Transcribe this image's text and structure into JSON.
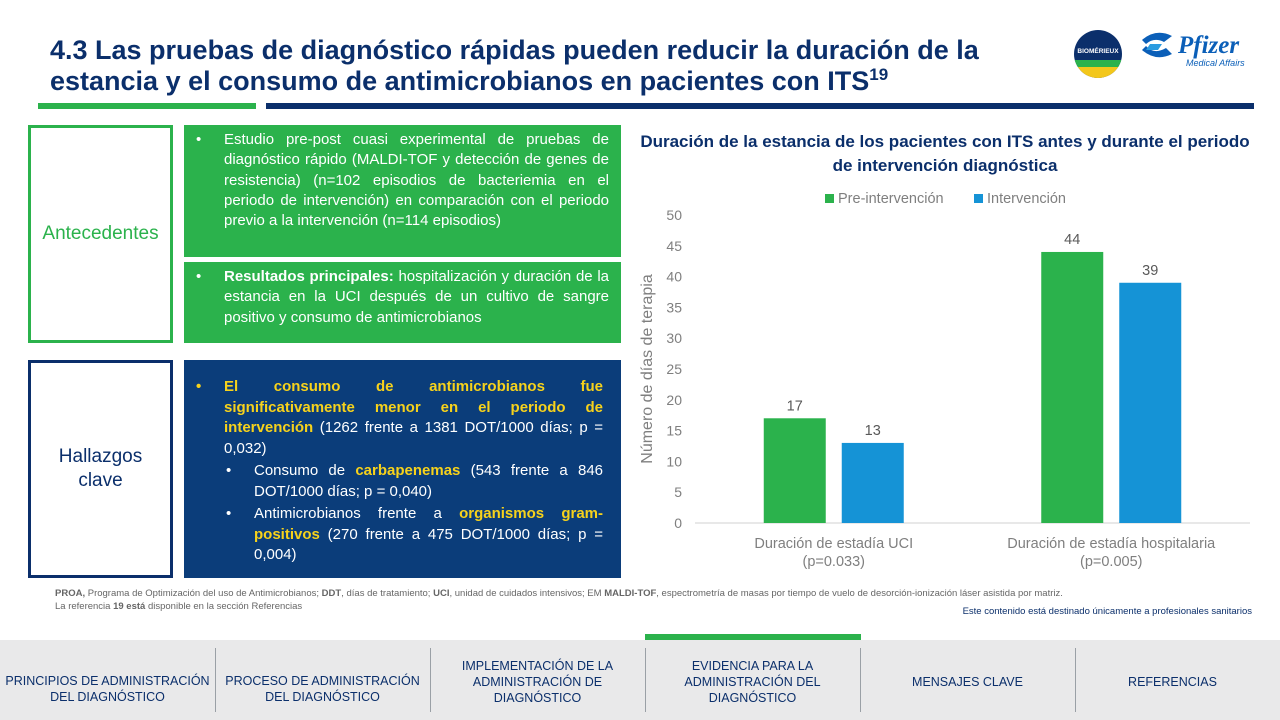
{
  "header": {
    "title": "4.3 Las pruebas de diagnóstico rápidas pueden reducir la duración de la estancia y el consumo de antimicrobianos en pacientes con ITS",
    "title_ref": "19",
    "logos": {
      "biomerieux_text": "BIOMÉRIEUX",
      "pfizer_text": "Pfizer",
      "pfizer_sub": "Medical Affairs"
    }
  },
  "sections": {
    "antecedentes": {
      "label": "Antecedentes",
      "bullet1": "Estudio pre-post cuasi experimental de pruebas de diagnóstico rápido (MALDI-TOF y detección de genes de resistencia) (n=102 episodios de bacteriemia en el periodo de intervención) en comparación con el periodo previo a la intervención (n=114 episodios)",
      "bullet2_bold": "Resultados principales:",
      "bullet2_text": " hospitalización y duración de la estancia en la UCI después de un cultivo de sangre positivo y consumo de antimicrobianos"
    },
    "hallazgos": {
      "label": "Hallazgos clave",
      "main_highlight": "El consumo de antimicrobianos fue significativamente menor en el periodo de intervención",
      "main_text": " (1262 frente a 1381 DOT/1000 días; p = 0,032)",
      "sub1_pre": "Consumo de ",
      "sub1_highlight": "carbapenemas",
      "sub1_post": " (543 frente a 846 DOT/1000 días; p = 0,040)",
      "sub2_pre": "Antimicrobianos frente a ",
      "sub2_highlight": "organismos gram-positivos",
      "sub2_post": " (270 frente a 475 DOT/1000 días; p = 0,004)"
    }
  },
  "chart_data": {
    "type": "bar",
    "title": "Duración de la estancia de los pacientes con ITS antes y durante el periodo de intervención diagnóstica",
    "categories": [
      "Duración de estadía UCI (p=0.033)",
      "Duración de estadía hospitalaria (p=0.005)"
    ],
    "category_lines": [
      [
        "Duración de estadía UCI",
        "(p=0.033)"
      ],
      [
        "Duración de estadía hospitalaria",
        "(p=0.005)"
      ]
    ],
    "series": [
      {
        "name": "Pre-intervención",
        "values": [
          17,
          44
        ],
        "color": "#2bb24c"
      },
      {
        "name": "Intervención",
        "values": [
          13,
          39
        ],
        "color": "#1593d6"
      }
    ],
    "ylabel": "Número de días de terapia",
    "xlabel": "",
    "ylim": [
      0,
      50
    ],
    "yticks": [
      0,
      5,
      10,
      15,
      20,
      25,
      30,
      35,
      40,
      45,
      50
    ],
    "grid": false,
    "legend": "top"
  },
  "footer": {
    "note_line1_parts": [
      {
        "b": true,
        "t": "PROA,"
      },
      {
        "b": false,
        "t": " Programa de Optimización del uso de Antimicrobianos; "
      },
      {
        "b": true,
        "t": "DDT"
      },
      {
        "b": false,
        "t": ", días de tratamiento; "
      },
      {
        "b": true,
        "t": "UCI"
      },
      {
        "b": false,
        "t": ", unidad de cuidados intensivos; EM "
      },
      {
        "b": true,
        "t": "MALDI-TOF"
      },
      {
        "b": false,
        "t": ", espectrometría de masas por tiempo de vuelo de desorción-ionización láser asistida por matriz."
      }
    ],
    "note_line2_parts": [
      {
        "b": false,
        "t": "La referencia "
      },
      {
        "b": true,
        "t": "19 está"
      },
      {
        "b": false,
        "t": " disponible en la sección Referencias"
      }
    ],
    "disclaimer": "Este contenido está destinado únicamente a profesionales sanitarios"
  },
  "nav": {
    "items": [
      "PRINCIPIOS DE ADMINISTRACIÓN DEL DIAGNÓSTICO",
      "PROCESO DE ADMINISTRACIÓN DEL DIAGNÓSTICO",
      "IMPLEMENTACIÓN DE LA ADMINISTRACIÓN DE DIAGNÓSTICO",
      "EVIDENCIA PARA LA ADMINISTRACIÓN DEL DIAGNÓSTICO",
      "MENSAJES CLAVE",
      "REFERENCIAS"
    ],
    "active_index": 3,
    "colors": {
      "accent": "#2bb24c",
      "primary": "#0b2f6b"
    }
  }
}
